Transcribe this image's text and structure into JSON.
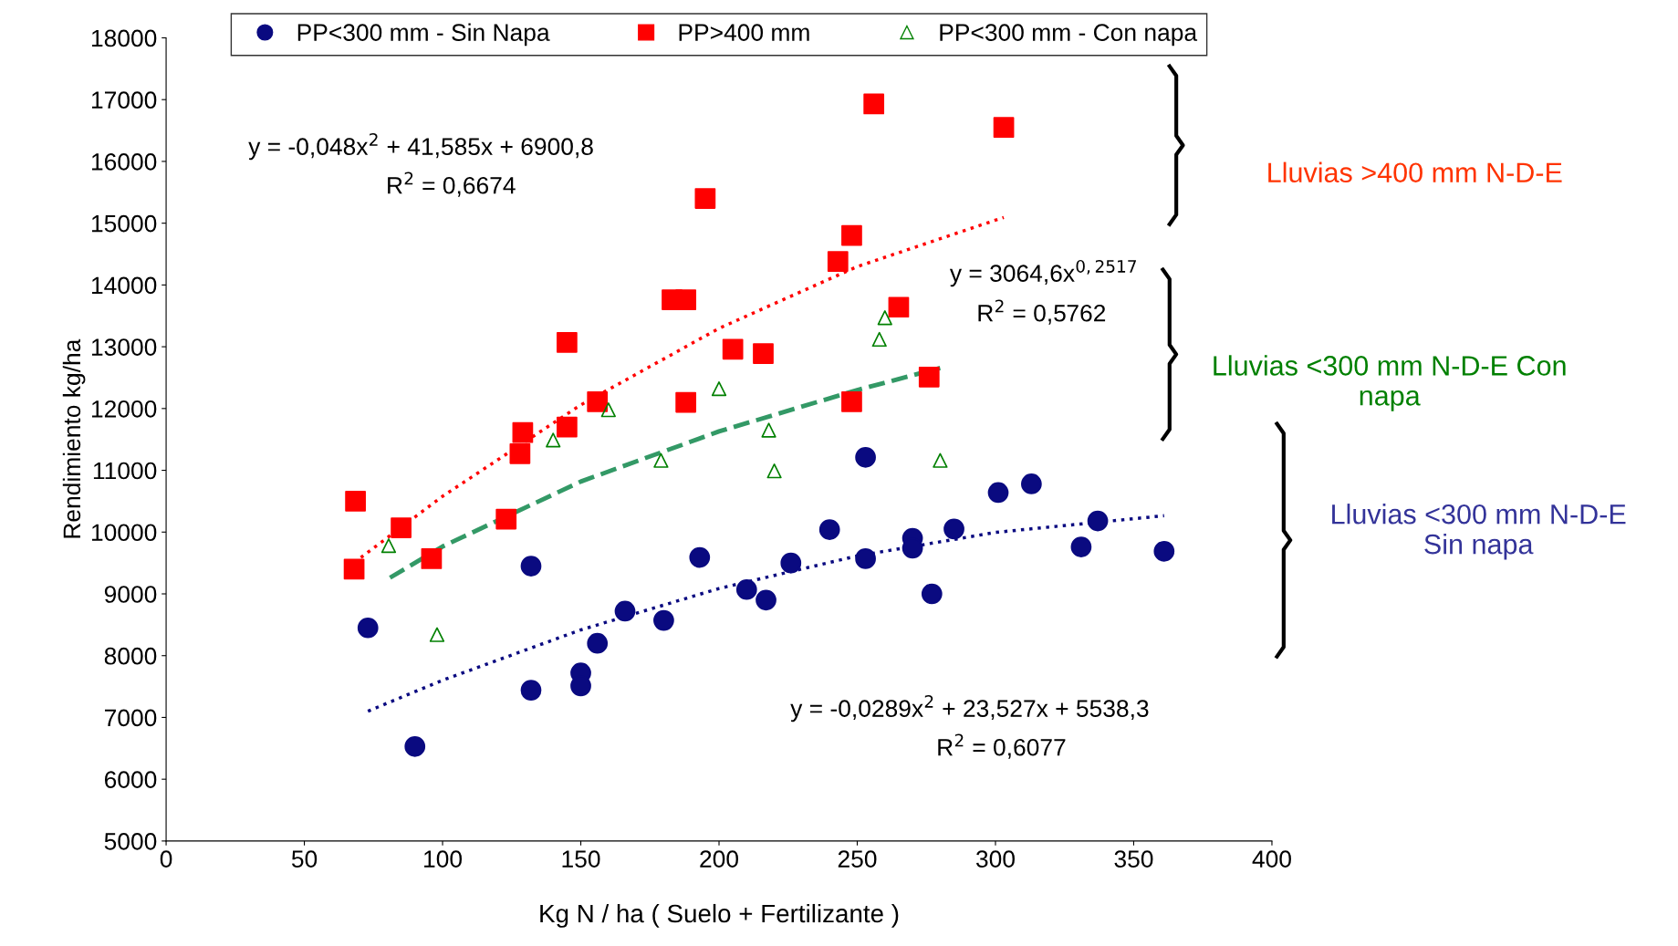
{
  "chart_data": {
    "type": "scatter",
    "xlabel": "Kg N / ha ( Suelo + Fertilizante )",
    "ylabel": "Rendimiento kg/ha",
    "xlim": [
      0,
      400
    ],
    "xticks": [
      0,
      50,
      100,
      150,
      200,
      250,
      300,
      350,
      400
    ],
    "ylim": [
      5000,
      18000
    ],
    "yticks": [
      5000,
      6000,
      7000,
      8000,
      9000,
      10000,
      11000,
      12000,
      13000,
      14000,
      15000,
      16000,
      17000,
      18000
    ],
    "grid": false,
    "legend": "top",
    "series": [
      {
        "name": "PP<300 mm - Sin Napa",
        "color": "#0a0a80",
        "marker": "circle",
        "x": [
          73,
          90,
          132,
          132,
          150,
          150,
          156,
          166,
          180,
          193,
          210,
          217,
          226,
          240,
          253,
          253,
          270,
          270,
          277,
          285,
          301,
          313,
          331,
          337,
          361
        ],
        "values": [
          8450,
          6530,
          9450,
          7440,
          7720,
          7510,
          8200,
          8720,
          8570,
          9590,
          9070,
          8900,
          9500,
          10040,
          11210,
          9570,
          9900,
          9740,
          9000,
          10050,
          10640,
          10780,
          9760,
          10180,
          9690
        ]
      },
      {
        "name": "PP>400 mm",
        "color": "#ff0000",
        "marker": "square",
        "x": [
          68,
          68.5,
          85,
          96,
          123,
          128,
          129,
          145,
          145,
          156,
          183,
          188,
          188,
          195,
          205,
          216,
          243,
          248,
          248,
          256,
          265,
          276,
          303
        ],
        "values": [
          9400,
          10500,
          10070,
          9570,
          10210,
          11270,
          11610,
          11700,
          13070,
          12110,
          13760,
          13760,
          12100,
          15400,
          12960,
          12890,
          14380,
          14800,
          12110,
          16930,
          13640,
          12510,
          16550
        ]
      },
      {
        "name": "PP<300 mm - Con napa",
        "color": "#008000",
        "marker": "triangle",
        "x": [
          80.5,
          98,
          140,
          160,
          179,
          200,
          218,
          220,
          258,
          260,
          280
        ],
        "values": [
          9780,
          8340,
          11490,
          11980,
          11160,
          12320,
          11650,
          10990,
          13120,
          13470,
          11160
        ]
      },
      {
        "type": "line",
        "color": "#ff0000",
        "line_style": "dotted",
        "x": [
          68,
          100,
          150,
          200,
          250,
          303
        ],
        "values": [
          9507,
          10579,
          12059,
          13298,
          14297,
          15094
        ]
      },
      {
        "type": "line",
        "color": "#339966",
        "line_style": "dashed",
        "x": [
          81,
          100,
          150,
          200,
          250,
          280
        ],
        "values": [
          9262,
          9767,
          10818,
          11630,
          12299,
          12657
        ]
      },
      {
        "type": "line",
        "color": "#0a0a80",
        "line_style": "dotted",
        "x": [
          73,
          100,
          150,
          200,
          250,
          300,
          361
        ],
        "values": [
          7101,
          7602,
          8417,
          9087,
          9614,
          9995,
          10265
        ]
      }
    ],
    "annotations": [
      "y = -0,048x$^{2}$ + 41,585x + 6900,8",
      "R$^{2}$ = 0,6674",
      "y = 3064,6x$^{0,2517}$",
      "R$^{2}$ = 0,5762",
      "y = -0,0289x$^{2}$ + 23,527x + 5538,3",
      "R$^{2}$ = 0,6077",
      "Lluvias >400 mm N-D-E",
      "Lluvias <300 mm N-D-E Con\nnapa",
      "Lluvias <300 mm N-D-E\nSin napa"
    ]
  }
}
